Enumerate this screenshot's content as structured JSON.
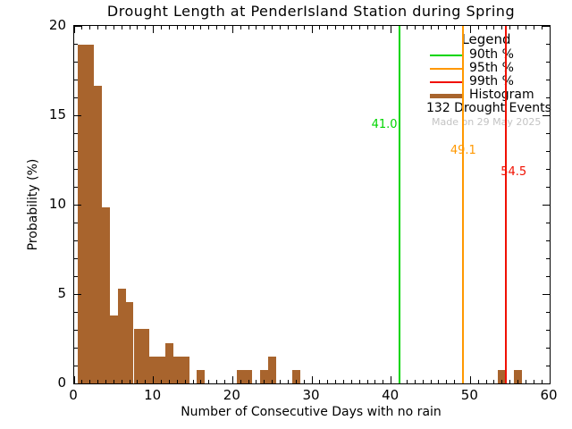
{
  "chart_data": {
    "type": "bar",
    "title": "Drought Length at PenderIsland Station during Spring",
    "xlabel": "Number of Consecutive Days with no rain",
    "ylabel": "Probability (%)",
    "xlim": [
      0,
      60
    ],
    "ylim": [
      0,
      20
    ],
    "x_major_ticks": [
      0,
      10,
      20,
      30,
      40,
      50,
      60
    ],
    "x_minor_tick_step": 1,
    "y_major_ticks": [
      0,
      5,
      10,
      15,
      20
    ],
    "y_minor_tick_step": 1,
    "grid": "off",
    "legend_position": "top-right-inside",
    "bar_color": "#a8642d",
    "bin_width_days": 1,
    "bins": [
      {
        "day": 1,
        "pct": 18.94
      },
      {
        "day": 2,
        "pct": 18.94
      },
      {
        "day": 3,
        "pct": 16.67
      },
      {
        "day": 4,
        "pct": 9.85
      },
      {
        "day": 5,
        "pct": 3.79
      },
      {
        "day": 6,
        "pct": 5.3
      },
      {
        "day": 7,
        "pct": 4.55
      },
      {
        "day": 8,
        "pct": 3.03
      },
      {
        "day": 9,
        "pct": 3.03
      },
      {
        "day": 10,
        "pct": 1.52
      },
      {
        "day": 11,
        "pct": 1.52
      },
      {
        "day": 12,
        "pct": 2.27
      },
      {
        "day": 13,
        "pct": 1.52
      },
      {
        "day": 14,
        "pct": 1.52
      },
      {
        "day": 16,
        "pct": 0.76
      },
      {
        "day": 21,
        "pct": 0.76
      },
      {
        "day": 22,
        "pct": 0.76
      },
      {
        "day": 24,
        "pct": 0.76
      },
      {
        "day": 25,
        "pct": 1.52
      },
      {
        "day": 28,
        "pct": 0.76
      },
      {
        "day": 54,
        "pct": 0.76
      },
      {
        "day": 56,
        "pct": 0.76
      }
    ],
    "percentiles": [
      {
        "label": "90th %",
        "value": 41.0,
        "value_label": "41.0",
        "color": "#00d500"
      },
      {
        "label": "95th %",
        "value": 49.1,
        "value_label": "49.1",
        "color": "#ff9800"
      },
      {
        "label": "99th %",
        "value": 54.5,
        "value_label": "54.5",
        "color": "#f01000"
      }
    ],
    "legend": {
      "title": "Legend",
      "histogram_label": "Histogram",
      "events_label": "132 Drought Events"
    },
    "watermark": "Made on 29 May 2025"
  }
}
